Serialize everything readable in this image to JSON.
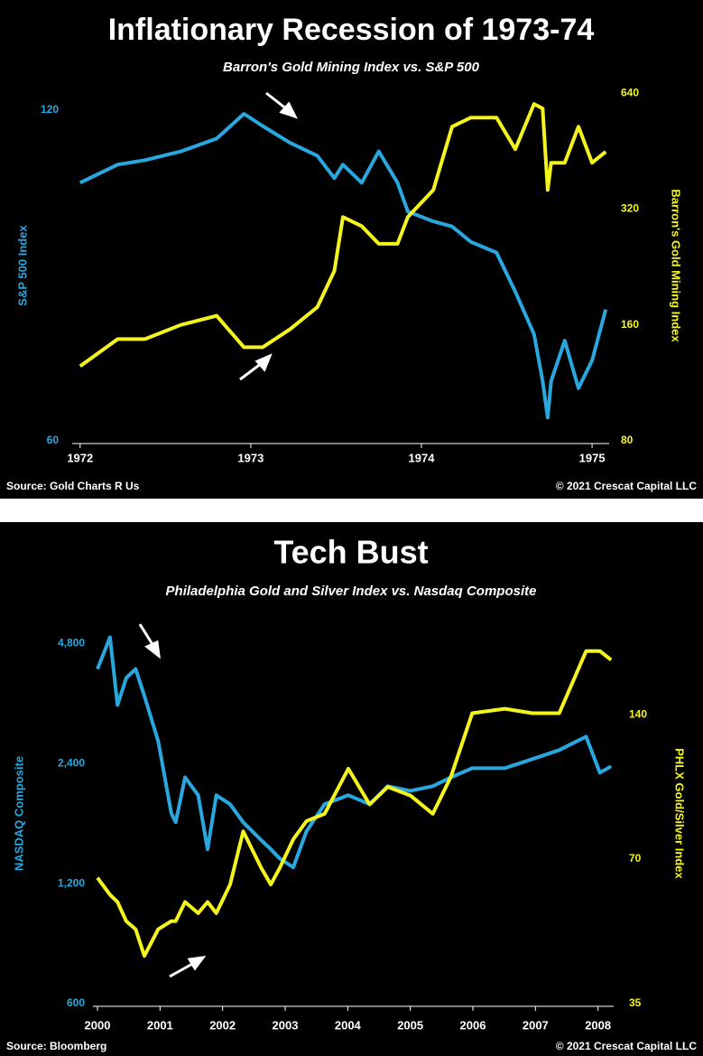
{
  "chart_data": [
    {
      "type": "line",
      "title": "Inflationary Recession of 1973-74",
      "subtitle": "Barron's Gold Mining Index vs. S&P 500",
      "y_label": "S&P 500 Index",
      "y2_label": "Barron's Gold Mining Index",
      "source": "Source: Gold Charts R Us",
      "copyright": "© 2021 Crescat Capital LLC",
      "x": [
        1972.0,
        1972.22,
        1972.38,
        1972.59,
        1972.8,
        1972.96,
        1973.07,
        1973.23,
        1973.39,
        1973.49,
        1973.54,
        1973.65,
        1973.75,
        1973.86,
        1973.92,
        1974.07,
        1974.18,
        1974.29,
        1974.44,
        1974.55,
        1974.66,
        1974.71,
        1974.74,
        1974.76,
        1974.84,
        1974.92,
        1975.0,
        1975.08
      ],
      "xlim": [
        1971.98,
        1975.1
      ],
      "xticks": [
        1972,
        1973,
        1974,
        1975
      ],
      "ylim": [
        60,
        125
      ],
      "yticks": [
        60,
        120
      ],
      "y2lim": [
        80,
        651
      ],
      "y2ticks": [
        80,
        160,
        320,
        640
      ],
      "ylog": true,
      "y2log": true,
      "series": [
        {
          "name": "S&P 500",
          "color": "#29a8e0",
          "values": [
            103,
            107,
            108,
            110,
            113,
            119,
            116,
            112,
            109,
            104,
            107,
            103,
            110,
            103,
            97,
            95,
            94,
            91,
            89,
            82,
            75,
            68,
            63,
            68,
            74,
            67,
            71,
            79
          ]
        },
        {
          "name": "Barron's Gold Mining Index",
          "color": "#f5f51e",
          "axis": "y2",
          "values": [
            125,
            147,
            147,
            160,
            169,
            140,
            140,
            156,
            178,
            221,
            305,
            289,
            260,
            260,
            305,
            359,
            524,
            553,
            553,
            458,
            600,
            584,
            359,
            422,
            422,
            524,
            422,
            451
          ]
        }
      ]
    },
    {
      "type": "line",
      "title": "Tech Bust",
      "subtitle": "Philadelphia Gold and Silver Index vs. Nasdaq Composite",
      "y_label": "NASDAQ Composite",
      "y2_label": "PHLX Gold/Silver Index",
      "source": "Source: Bloomberg",
      "copyright": "© 2021 Crescat Capital LLC",
      "x": [
        2000.0,
        2000.2,
        2000.32,
        2000.46,
        2000.61,
        2000.75,
        2000.97,
        2001.18,
        2001.25,
        2001.4,
        2001.61,
        2001.76,
        2001.9,
        2002.12,
        2002.33,
        2002.62,
        2002.77,
        2002.91,
        2003.13,
        2003.34,
        2003.63,
        2004.01,
        2004.35,
        2004.64,
        2005.0,
        2005.36,
        2005.65,
        2005.99,
        2006.51,
        2006.95,
        2007.38,
        2007.81,
        2008.03,
        2008.21
      ],
      "xlim": [
        2000,
        2008.25
      ],
      "xticks": [
        2000,
        2001,
        2002,
        2003,
        2004,
        2005,
        2006,
        2007,
        2008
      ],
      "ylim": [
        600,
        5400
      ],
      "yticks": [
        600,
        {
          "value": 1200,
          "label": "1,200"
        },
        {
          "value": 2400,
          "label": "2,400"
        },
        {
          "value": 4800,
          "label": "4,800"
        }
      ],
      "y2lim": [
        35,
        217
      ],
      "y2ticks": [
        35,
        70,
        140
      ],
      "ylog": true,
      "y2log": true,
      "series": [
        {
          "name": "NASDAQ Composite",
          "color": "#29a8e0",
          "values": [
            4147,
            4980,
            3368,
            3937,
            4147,
            3549,
            2733,
            1803,
            1710,
            2218,
            2000,
            1463,
            2000,
            1898,
            1710,
            1541,
            1463,
            1389,
            1318,
            1624,
            1898,
            2000,
            1898,
            2107,
            2052,
            2107,
            2218,
            2338,
            2338,
            2464,
            2596,
            2806,
            2278,
            2362
          ]
        },
        {
          "name": "PHLX Gold/Silver Index",
          "color": "#f5f51e",
          "axis": "y2",
          "values": [
            64,
            59,
            57,
            52,
            50,
            44,
            50,
            52,
            52,
            57,
            54,
            57,
            54,
            62,
            80,
            67,
            62,
            67,
            77,
            84,
            87,
            108,
            91,
            99,
            95,
            87,
            104,
            141,
            144,
            141,
            141,
            190,
            190,
            182
          ]
        }
      ]
    }
  ]
}
